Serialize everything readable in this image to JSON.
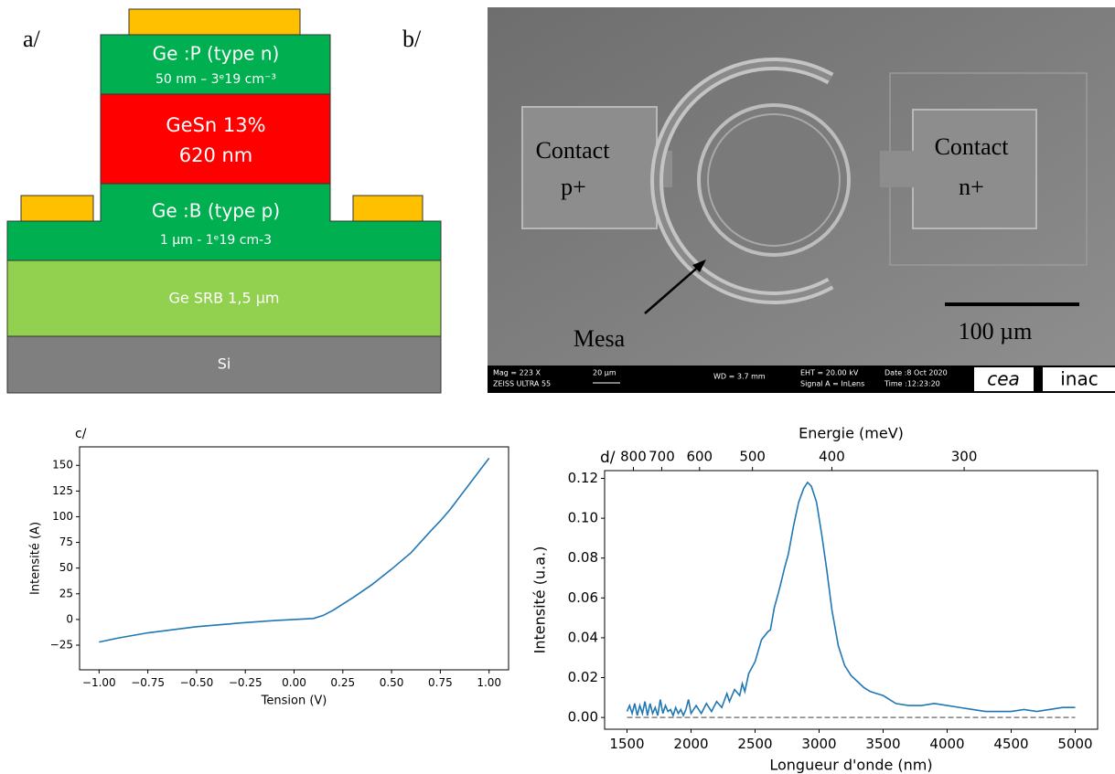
{
  "panels": {
    "a": "a/",
    "b": "b/"
  },
  "diagram": {
    "layers": [
      {
        "lines": [
          "Ge :P (type n)",
          "50 nm – 3ᵉ19 cm⁻³"
        ]
      },
      {
        "lines": [
          "GeSn 13%",
          "620 nm"
        ]
      },
      {
        "lines": [
          "Ge :B (type p)",
          "1 µm - 1ᵉ19 cm-3"
        ]
      },
      {
        "lines": [
          "Ge SRB 1,5 µm"
        ]
      },
      {
        "lines": [
          "Si"
        ]
      }
    ]
  },
  "image": {
    "contact_p": [
      "Contact",
      "p+"
    ],
    "contact_n": [
      "Contact",
      "n+"
    ],
    "mesa": "Mesa",
    "scale_bar": "100 µm",
    "info_bar": [
      "Mag =   223 X",
      "ZEISS ULTRA 55",
      "20 µm",
      "WD =  3.7 mm",
      "EHT = 20.00 kV",
      "Signal A = InLens",
      "Date :8 Oct 2020",
      "Time :12:23:20"
    ],
    "logos": [
      "cea",
      "inac"
    ]
  },
  "chart_data": [
    {
      "type": "line",
      "title": "c/",
      "xlabel": "Tension (V)",
      "ylabel": "Intensité (A)",
      "color": "#1f77b4",
      "x": [
        -1,
        -0.9,
        -0.75,
        -0.5,
        -0.25,
        -0.1,
        0,
        0.1,
        0.15,
        0.2,
        0.25,
        0.3,
        0.4,
        0.5,
        0.6,
        0.7,
        0.75,
        0.8,
        0.9,
        1
      ],
      "values": [
        -22,
        -18,
        -13,
        -7,
        -3,
        -1,
        0,
        1,
        4,
        9,
        15,
        21,
        34,
        49,
        65,
        86,
        96,
        107,
        132,
        157
      ],
      "xlim": [
        -1.1,
        1.1
      ],
      "ylim": [
        -49,
        168
      ],
      "xticks": [
        {
          "value": -1,
          "label": "−1.00"
        },
        {
          "value": -0.75,
          "label": "−0.75"
        },
        {
          "value": -0.5,
          "label": "−0.50"
        },
        {
          "value": -0.25,
          "label": "−0.25"
        },
        {
          "value": 0,
          "label": "0.00"
        },
        {
          "value": 0.25,
          "label": "0.25"
        },
        {
          "value": 0.5,
          "label": "0.50"
        },
        {
          "value": 0.75,
          "label": "0.75"
        },
        {
          "value": 1,
          "label": "1.00"
        }
      ],
      "yticks": [
        {
          "value": -25,
          "label": "−25"
        },
        0,
        25,
        50,
        75,
        100,
        125,
        150
      ]
    },
    {
      "type": "line",
      "title": "d/",
      "xlabel": "Longueur d'onde (nm)",
      "ylabel": "Intensité (u.a.)",
      "x2label": "Energie (meV)",
      "color": "#1f77b4",
      "x": [
        1500,
        1520,
        1540,
        1560,
        1580,
        1600,
        1620,
        1640,
        1660,
        1680,
        1700,
        1720,
        1740,
        1760,
        1780,
        1800,
        1820,
        1840,
        1860,
        1880,
        1900,
        1920,
        1940,
        1960,
        1980,
        2000,
        2040,
        2080,
        2120,
        2160,
        2200,
        2240,
        2280,
        2300,
        2340,
        2380,
        2400,
        2420,
        2450,
        2500,
        2550,
        2600,
        2620,
        2650,
        2680,
        2700,
        2730,
        2760,
        2800,
        2840,
        2880,
        2910,
        2940,
        2980,
        3020,
        3060,
        3100,
        3150,
        3200,
        3250,
        3300,
        3350,
        3400,
        3450,
        3500,
        3550,
        3600,
        3700,
        3800,
        3900,
        4000,
        4100,
        4200,
        4300,
        4400,
        4500,
        4600,
        4700,
        4800,
        4900,
        5000
      ],
      "values": [
        0.003,
        0.006,
        0.002,
        0.007,
        0.001,
        0.006,
        0.002,
        0.008,
        0.001,
        0.007,
        0.002,
        0.005,
        0.001,
        0.009,
        0.002,
        0.006,
        0.003,
        0.004,
        0.001,
        0.005,
        0.002,
        0.004,
        0.001,
        0.004,
        0.009,
        0.002,
        0.006,
        0.002,
        0.007,
        0.003,
        0.008,
        0.005,
        0.012,
        0.008,
        0.014,
        0.011,
        0.017,
        0.013,
        0.022,
        0.028,
        0.039,
        0.043,
        0.044,
        0.055,
        0.062,
        0.067,
        0.075,
        0.082,
        0.096,
        0.108,
        0.115,
        0.118,
        0.116,
        0.108,
        0.092,
        0.074,
        0.054,
        0.036,
        0.026,
        0.021,
        0.018,
        0.015,
        0.013,
        0.012,
        0.011,
        0.009,
        0.007,
        0.006,
        0.006,
        0.007,
        0.006,
        0.005,
        0.004,
        0.003,
        0.003,
        0.003,
        0.004,
        0.003,
        0.004,
        0.005,
        0.005
      ],
      "hline": 0,
      "xlim": [
        1325,
        5175
      ],
      "ylim": [
        -0.0059,
        0.1239
      ],
      "xticks": [
        1500,
        2000,
        2500,
        3000,
        3500,
        4000,
        4500,
        5000
      ],
      "x2ticks": [
        800,
        700,
        600,
        500,
        400,
        300
      ],
      "yticks": [
        {
          "value": 0,
          "label": "0.00"
        },
        {
          "value": 0.02,
          "label": "0.02"
        },
        {
          "value": 0.04,
          "label": "0.04"
        },
        {
          "value": 0.06,
          "label": "0.06"
        },
        {
          "value": 0.08,
          "label": "0.08"
        },
        {
          "value": 0.1,
          "label": "0.10"
        },
        {
          "value": 0.12,
          "label": "0.12"
        }
      ]
    }
  ]
}
